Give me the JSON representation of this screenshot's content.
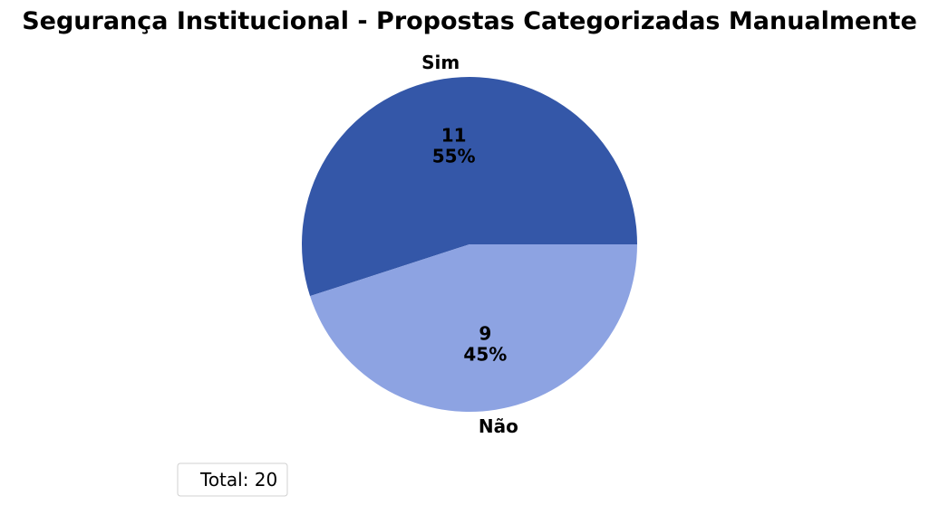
{
  "chart_data": {
    "type": "pie",
    "title": "Segurança Institucional - Propostas Categorizadas Manualmente",
    "slices": [
      {
        "label": "Sim",
        "value": 11,
        "percent_label": "55%",
        "color": "#3457a8"
      },
      {
        "label": "Não",
        "value": 9,
        "percent_label": "45%",
        "color": "#8da3e2"
      }
    ],
    "start_angle_deg": 0,
    "direction": "counterclockwise",
    "legend": {
      "text": "Total: 20",
      "position": "lower-left"
    }
  }
}
